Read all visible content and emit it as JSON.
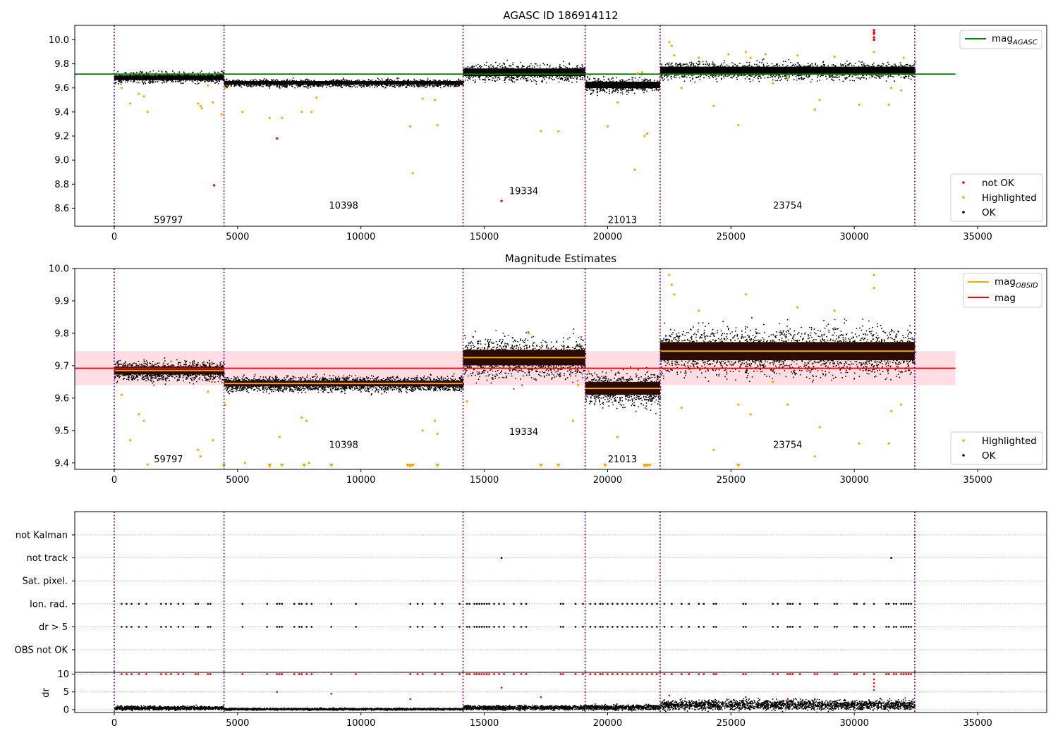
{
  "chart_data": [
    {
      "type": "scatter",
      "title": "AGASC ID 186914112",
      "xlim": [
        -1600,
        37800
      ],
      "ylim": [
        8.45,
        10.12
      ],
      "xticks": [
        0,
        5000,
        10000,
        15000,
        20000,
        25000,
        30000,
        35000
      ],
      "xtick_labels": [
        "0",
        "5000",
        "10000",
        "15000",
        "20000",
        "25000",
        "30000",
        "35000"
      ],
      "yticks": [
        8.6,
        8.8,
        9.0,
        9.2,
        9.4,
        9.6,
        9.8,
        10.0
      ],
      "ytick_labels": [
        "8.6",
        "8.8",
        "9.0",
        "9.2",
        "9.4",
        "9.6",
        "9.8",
        "10.0"
      ],
      "obsid_boundaries": [
        0,
        4450,
        14140,
        19090,
        22130,
        32450
      ],
      "obsid_labels": [
        {
          "text": "59797",
          "x": 2200,
          "y": 8.5
        },
        {
          "text": "10398",
          "x": 9300,
          "y": 8.62
        },
        {
          "text": "19334",
          "x": 16600,
          "y": 8.74
        },
        {
          "text": "21013",
          "x": 20600,
          "y": 8.5
        },
        {
          "text": "23754",
          "x": 27300,
          "y": 8.62
        }
      ],
      "mag_agasc": {
        "value": 9.715,
        "x_range": [
          -1600,
          34100
        ]
      },
      "segment_means": [
        9.685,
        9.643,
        9.73,
        9.625,
        9.745
      ],
      "segment_spread": [
        0.022,
        0.015,
        0.035,
        0.03,
        0.035
      ],
      "highlighted_points": [
        [
          300,
          9.6
        ],
        [
          650,
          9.47
        ],
        [
          1000,
          9.55
        ],
        [
          1200,
          9.53
        ],
        [
          1350,
          9.4
        ],
        [
          3400,
          9.47
        ],
        [
          3500,
          9.45
        ],
        [
          3550,
          9.43
        ],
        [
          3800,
          9.62
        ],
        [
          4000,
          9.48
        ],
        [
          4350,
          9.38
        ],
        [
          4500,
          9.6
        ],
        [
          5200,
          9.4
        ],
        [
          6300,
          9.35
        ],
        [
          6800,
          9.35
        ],
        [
          7600,
          9.4
        ],
        [
          8000,
          9.4
        ],
        [
          8200,
          9.52
        ],
        [
          12000,
          9.28
        ],
        [
          12100,
          8.89
        ],
        [
          12500,
          9.51
        ],
        [
          13000,
          9.5
        ],
        [
          13100,
          9.29
        ],
        [
          17300,
          9.24
        ],
        [
          18000,
          9.24
        ],
        [
          20000,
          9.28
        ],
        [
          20400,
          9.48
        ],
        [
          21100,
          8.92
        ],
        [
          21500,
          9.2
        ],
        [
          21600,
          9.22
        ],
        [
          21200,
          9.72
        ],
        [
          21400,
          9.73
        ],
        [
          22500,
          9.98
        ],
        [
          22600,
          9.95
        ],
        [
          23000,
          9.6
        ],
        [
          23700,
          9.85
        ],
        [
          24300,
          9.45
        ],
        [
          25300,
          9.29
        ],
        [
          25600,
          9.9
        ],
        [
          25800,
          9.85
        ],
        [
          26700,
          9.64
        ],
        [
          27300,
          9.68
        ],
        [
          28400,
          9.42
        ],
        [
          28600,
          9.5
        ],
        [
          30200,
          9.46
        ],
        [
          30800,
          9.9
        ],
        [
          31400,
          9.46
        ],
        [
          31500,
          9.6
        ],
        [
          31900,
          9.58
        ],
        [
          22700,
          9.87
        ],
        [
          24900,
          9.88
        ],
        [
          26400,
          9.88
        ],
        [
          27700,
          9.87
        ],
        [
          29200,
          9.86
        ],
        [
          32000,
          9.85
        ]
      ],
      "not_ok_points": [
        [
          4050,
          8.79
        ],
        [
          6600,
          9.18
        ],
        [
          15700,
          8.66
        ],
        [
          30800,
          10.05
        ],
        [
          30800,
          10.08
        ],
        [
          30800,
          10.02
        ],
        [
          30800,
          10.0
        ],
        [
          30800,
          10.06
        ]
      ],
      "legends": [
        {
          "position": "top-right",
          "entries": [
            {
              "label": "mag",
              "sub": "AGASC",
              "color": "#008000",
              "kind": "line"
            }
          ]
        },
        {
          "position": "lower-right",
          "entries": [
            {
              "label": "not OK",
              "color": "#ff0000",
              "kind": "dot"
            },
            {
              "label": "Highlighted",
              "color": "#ffa500",
              "kind": "dot"
            },
            {
              "label": "OK",
              "color": "#000000",
              "kind": "dot"
            }
          ]
        }
      ]
    },
    {
      "type": "scatter",
      "title": "Magnitude Estimates",
      "xlim": [
        -1600,
        37800
      ],
      "ylim": [
        9.38,
        10.0
      ],
      "xticks": [
        0,
        5000,
        10000,
        15000,
        20000,
        25000,
        30000,
        35000
      ],
      "xtick_labels": [
        "0",
        "5000",
        "10000",
        "15000",
        "20000",
        "25000",
        "30000",
        "35000"
      ],
      "yticks": [
        9.4,
        9.5,
        9.6,
        9.7,
        9.8,
        9.9,
        10.0
      ],
      "ytick_labels": [
        "9.4",
        "9.5",
        "9.6",
        "9.7",
        "9.8",
        "9.9",
        "10.0"
      ],
      "obsid_boundaries": [
        0,
        4450,
        14140,
        19090,
        22130,
        32450
      ],
      "obsid_labels": [
        {
          "text": "59797",
          "x": 2200,
          "y": 9.41
        },
        {
          "text": "10398",
          "x": 9300,
          "y": 9.455
        },
        {
          "text": "19334",
          "x": 16600,
          "y": 9.495
        },
        {
          "text": "21013",
          "x": 20600,
          "y": 9.41
        },
        {
          "text": "23754",
          "x": 27300,
          "y": 9.455
        }
      ],
      "mag": {
        "value": 9.692,
        "band": [
          9.64,
          9.745
        ],
        "x_range": [
          -1600,
          34100
        ]
      },
      "mag_obsid": [
        9.685,
        9.645,
        9.725,
        9.63,
        9.745
      ],
      "segment_spread": [
        0.015,
        0.011,
        0.03,
        0.025,
        0.035
      ],
      "highlighted_points": [
        [
          300,
          9.61
        ],
        [
          650,
          9.47
        ],
        [
          1000,
          9.55
        ],
        [
          1200,
          9.53
        ],
        [
          1350,
          9.395
        ],
        [
          3400,
          9.44
        ],
        [
          3500,
          9.42
        ],
        [
          3800,
          9.62
        ],
        [
          4000,
          9.47
        ],
        [
          4500,
          9.58
        ],
        [
          5300,
          9.4
        ],
        [
          6300,
          9.39
        ],
        [
          6700,
          9.48
        ],
        [
          7600,
          9.54
        ],
        [
          7800,
          9.53
        ],
        [
          7900,
          9.4
        ],
        [
          12000,
          9.39
        ],
        [
          12500,
          9.5
        ],
        [
          13000,
          9.53
        ],
        [
          13100,
          9.49
        ],
        [
          14300,
          9.59
        ],
        [
          16800,
          9.8
        ],
        [
          18600,
          9.53
        ],
        [
          18800,
          9.64
        ],
        [
          20400,
          9.48
        ],
        [
          21500,
          9.39
        ],
        [
          22500,
          9.98
        ],
        [
          22600,
          9.95
        ],
        [
          22700,
          9.92
        ],
        [
          23000,
          9.57
        ],
        [
          23700,
          9.87
        ],
        [
          24300,
          9.44
        ],
        [
          25300,
          9.58
        ],
        [
          25600,
          9.92
        ],
        [
          25800,
          9.55
        ],
        [
          27300,
          9.58
        ],
        [
          28400,
          9.42
        ],
        [
          28600,
          9.51
        ],
        [
          30200,
          9.46
        ],
        [
          30800,
          9.98
        ],
        [
          30800,
          9.94
        ],
        [
          31400,
          9.46
        ],
        [
          31500,
          9.56
        ],
        [
          31900,
          9.58
        ],
        [
          26700,
          9.65
        ],
        [
          29200,
          9.87
        ],
        [
          27700,
          9.88
        ]
      ],
      "lower_limit_markers": [
        4450,
        6300,
        6800,
        7700,
        8800,
        11900,
        12000,
        12100,
        13100,
        17300,
        18000,
        19900,
        21500,
        21600,
        21700,
        25300
      ],
      "legends": [
        {
          "position": "top-right",
          "entries": [
            {
              "label": "mag",
              "sub": "OBSID",
              "color": "#ffa500",
              "kind": "line"
            },
            {
              "label": "mag",
              "color": "#ff0000",
              "kind": "line"
            }
          ]
        },
        {
          "position": "lower-right",
          "entries": [
            {
              "label": "Highlighted",
              "color": "#ffa500",
              "kind": "dot"
            },
            {
              "label": "OK",
              "color": "#000000",
              "kind": "dot"
            }
          ]
        }
      ]
    },
    {
      "type": "scatter",
      "title": "",
      "xlim": [
        -1600,
        37800
      ],
      "categories": [
        "not Kalman",
        "not track",
        "Sat. pixel.",
        "Ion. rad.",
        "dr > 5",
        "OBS not OK"
      ],
      "obsid_boundaries": [
        0,
        4450,
        14140,
        19090,
        22130,
        32450
      ],
      "not_track_x": [
        15700,
        31500
      ],
      "not_kalman_x": [
        32450
      ],
      "ion_rad_x": [
        300,
        500,
        700,
        1000,
        1300,
        1900,
        2100,
        2300,
        2600,
        2800,
        3300,
        3400,
        3800,
        3900,
        5200,
        6200,
        6600,
        6700,
        6800,
        7300,
        7500,
        7600,
        7800,
        8000,
        8800,
        9800,
        12000,
        12300,
        12500,
        13000,
        13300,
        14000,
        14300,
        14400,
        14600,
        14700,
        14800,
        14900,
        15000,
        15100,
        15200,
        15400,
        15600,
        15800,
        16200,
        16500,
        16700,
        18100,
        18200,
        18700,
        19000,
        19300,
        19500,
        19700,
        19800,
        20000,
        20200,
        20400,
        20600,
        20800,
        21000,
        21200,
        21400,
        21600,
        21800,
        22000,
        22300,
        22600,
        23000,
        23300,
        23700,
        23900,
        24300,
        24400,
        25500,
        25600,
        26700,
        26900,
        27300,
        27400,
        27500,
        27800,
        28400,
        28500,
        29200,
        29300,
        30000,
        30100,
        30400,
        30800,
        31300,
        31400,
        31600,
        31700,
        31900,
        32000,
        32100,
        32200,
        32300
      ],
      "dr": {
        "ylim": [
          -0.8,
          10.5
        ],
        "yticks": [
          0,
          5,
          10
        ],
        "ytick_labels": [
          "0",
          "5",
          "10"
        ],
        "ylabel": "dr",
        "segment_levels": [
          0.6,
          0.3,
          0.7,
          0.8,
          1.5
        ],
        "red_points": [
          [
            6600,
            5
          ],
          [
            8800,
            4.5
          ],
          [
            12000,
            3
          ],
          [
            15700,
            6.2
          ],
          [
            17300,
            3.5
          ],
          [
            22500,
            4
          ],
          [
            30800,
            8.5
          ],
          [
            30800,
            7.5
          ],
          [
            30800,
            6.5
          ],
          [
            30800,
            5.5
          ],
          [
            25600,
            3.5
          ],
          [
            27300,
            3
          ],
          [
            28400,
            3
          ]
        ],
        "cap_value": 10
      }
    }
  ]
}
